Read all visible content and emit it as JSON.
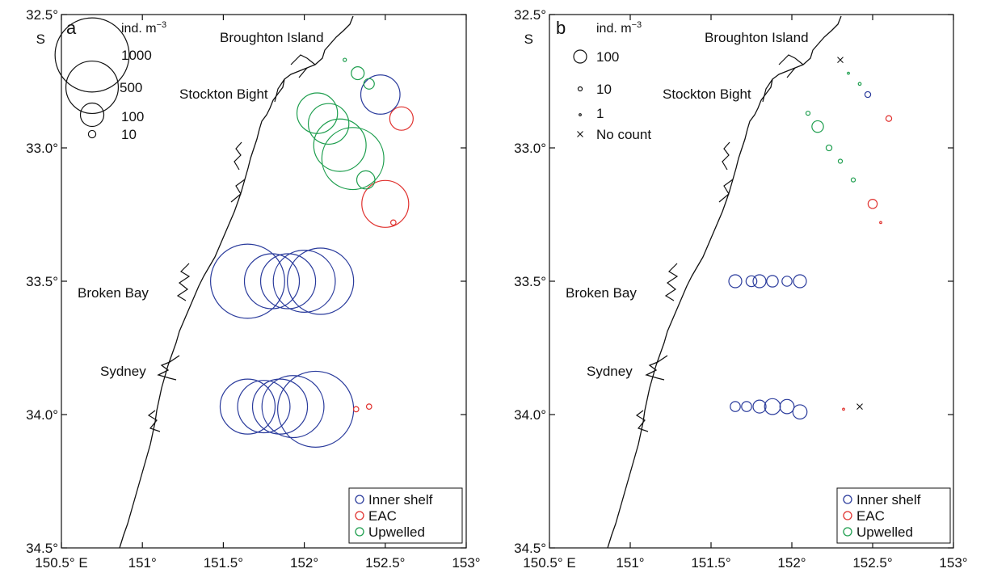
{
  "colors": {
    "inner": "#2a3b9c",
    "eac": "#e0322f",
    "upwelled": "#1e9e4e",
    "ink": "#111111"
  },
  "axes": {
    "x_ticks": [
      "150.5° E",
      "151°",
      "151.5°",
      "152°",
      "152.5°",
      "153°"
    ],
    "x_tick_values": [
      150.5,
      151,
      151.5,
      152,
      152.5,
      153
    ],
    "y_ticks": [
      "32.5°",
      "33.0°",
      "33.5°",
      "34.0°",
      "34.5°"
    ],
    "y_tick_values": [
      32.5,
      33.0,
      33.5,
      34.0,
      34.5
    ],
    "y_hemisphere": "S",
    "xlim": [
      150.5,
      153
    ],
    "ylim": [
      32.5,
      34.5
    ]
  },
  "places": [
    "Broughton Island",
    "Stockton Bight",
    "Broken Bay",
    "Sydney"
  ],
  "panel_a": {
    "letter": "a",
    "size_unit": "ind. m",
    "size_unit_exp": "−3",
    "size_legend": [
      "1000",
      "500",
      "100",
      "10"
    ],
    "size_legend_values": [
      1000,
      500,
      100,
      10
    ],
    "legend": [
      "Inner shelf",
      "EAC",
      "Upwelled"
    ]
  },
  "panel_b": {
    "letter": "b",
    "size_unit": "ind. m",
    "size_unit_exp": "−3",
    "size_legend": [
      "100",
      "10",
      "1",
      "No count"
    ],
    "size_legend_values": [
      100,
      10,
      1
    ],
    "legend": [
      "Inner shelf",
      "EAC",
      "Upwelled"
    ]
  },
  "chart_data": [
    {
      "type": "scatter",
      "panel": "a",
      "size_variable": "abundance (ind. m−3)",
      "xlim": [
        150.5,
        153
      ],
      "ylim": [
        32.5,
        34.5
      ],
      "series": [
        {
          "name": "Inner shelf",
          "points": [
            {
              "lon": 151.65,
              "lat": 33.5,
              "value": 1000
            },
            {
              "lon": 151.8,
              "lat": 33.5,
              "value": 550
            },
            {
              "lon": 151.9,
              "lat": 33.5,
              "value": 550
            },
            {
              "lon": 152.0,
              "lat": 33.5,
              "value": 700
            },
            {
              "lon": 152.1,
              "lat": 33.5,
              "value": 800
            },
            {
              "lon": 151.65,
              "lat": 33.97,
              "value": 550
            },
            {
              "lon": 151.75,
              "lat": 33.97,
              "value": 500
            },
            {
              "lon": 151.85,
              "lat": 33.97,
              "value": 550
            },
            {
              "lon": 151.93,
              "lat": 33.97,
              "value": 700
            },
            {
              "lon": 152.07,
              "lat": 33.98,
              "value": 1050
            },
            {
              "lon": 152.47,
              "lat": 32.8,
              "value": 280
            }
          ]
        },
        {
          "name": "EAC",
          "points": [
            {
              "lon": 152.6,
              "lat": 32.89,
              "value": 100
            },
            {
              "lon": 152.5,
              "lat": 33.21,
              "value": 400
            },
            {
              "lon": 152.55,
              "lat": 33.28,
              "value": 5
            },
            {
              "lon": 152.32,
              "lat": 33.98,
              "value": 5
            },
            {
              "lon": 152.4,
              "lat": 33.97,
              "value": 5
            }
          ]
        },
        {
          "name": "Upwelled",
          "points": [
            {
              "lon": 152.25,
              "lat": 32.67,
              "value": 2
            },
            {
              "lon": 152.33,
              "lat": 32.72,
              "value": 30
            },
            {
              "lon": 152.4,
              "lat": 32.76,
              "value": 20
            },
            {
              "lon": 152.08,
              "lat": 32.87,
              "value": 300
            },
            {
              "lon": 152.15,
              "lat": 32.91,
              "value": 300
            },
            {
              "lon": 152.22,
              "lat": 32.99,
              "value": 500
            },
            {
              "lon": 152.3,
              "lat": 33.04,
              "value": 700
            },
            {
              "lon": 152.38,
              "lat": 33.12,
              "value": 60
            }
          ]
        }
      ]
    },
    {
      "type": "scatter",
      "panel": "b",
      "size_variable": "abundance (ind. m−3)",
      "xlim": [
        150.5,
        153
      ],
      "ylim": [
        32.5,
        34.5
      ],
      "series": [
        {
          "name": "Inner shelf",
          "points": [
            {
              "lon": 151.65,
              "lat": 33.5,
              "value": 100
            },
            {
              "lon": 151.75,
              "lat": 33.5,
              "value": 70
            },
            {
              "lon": 151.8,
              "lat": 33.5,
              "value": 100
            },
            {
              "lon": 151.88,
              "lat": 33.5,
              "value": 80
            },
            {
              "lon": 151.97,
              "lat": 33.5,
              "value": 60
            },
            {
              "lon": 152.05,
              "lat": 33.5,
              "value": 100
            },
            {
              "lon": 151.65,
              "lat": 33.97,
              "value": 60
            },
            {
              "lon": 151.72,
              "lat": 33.97,
              "value": 60
            },
            {
              "lon": 151.8,
              "lat": 33.97,
              "value": 100
            },
            {
              "lon": 151.88,
              "lat": 33.97,
              "value": 150
            },
            {
              "lon": 151.97,
              "lat": 33.97,
              "value": 120
            },
            {
              "lon": 152.05,
              "lat": 33.99,
              "value": 120
            },
            {
              "lon": 152.47,
              "lat": 32.8,
              "value": 20
            }
          ]
        },
        {
          "name": "EAC",
          "points": [
            {
              "lon": 152.6,
              "lat": 32.89,
              "value": 20
            },
            {
              "lon": 152.5,
              "lat": 33.21,
              "value": 50
            },
            {
              "lon": 152.55,
              "lat": 33.28,
              "value": 2
            },
            {
              "lon": 152.32,
              "lat": 33.98,
              "value": 2
            }
          ]
        },
        {
          "name": "Upwelled",
          "points": [
            {
              "lon": 152.35,
              "lat": 32.72,
              "value": 2
            },
            {
              "lon": 152.42,
              "lat": 32.76,
              "value": 5
            },
            {
              "lon": 152.1,
              "lat": 32.87,
              "value": 10
            },
            {
              "lon": 152.16,
              "lat": 32.92,
              "value": 80
            },
            {
              "lon": 152.23,
              "lat": 33.0,
              "value": 20
            },
            {
              "lon": 152.3,
              "lat": 33.05,
              "value": 10
            },
            {
              "lon": 152.38,
              "lat": 33.12,
              "value": 10
            }
          ]
        },
        {
          "name": "No count",
          "points": [
            {
              "lon": 152.3,
              "lat": 32.67
            },
            {
              "lon": 152.42,
              "lat": 33.97
            }
          ]
        }
      ]
    }
  ]
}
